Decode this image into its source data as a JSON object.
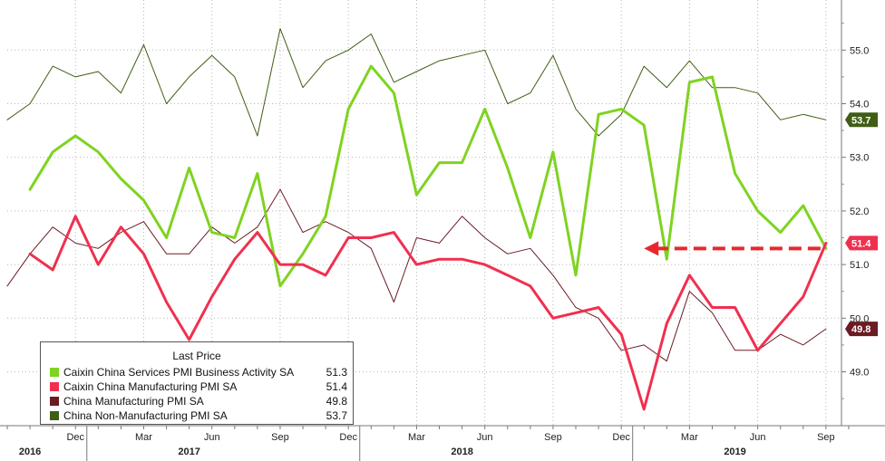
{
  "chart_data": {
    "type": "line",
    "title": "",
    "xlabel": "",
    "ylabel": "",
    "ylim": [
      48.0,
      55.9
    ],
    "yticks": [
      49.0,
      50.0,
      51.0,
      52.0,
      53.0,
      54.0,
      55.0
    ],
    "ytick_labels": [
      "49.0",
      "50.0",
      "51.0",
      "52.0",
      "53.0",
      "54.0",
      "55.0"
    ],
    "x_range": [
      "2016-09",
      "2019-10"
    ],
    "month_ticks": [
      {
        "date": "2016-12",
        "label": "Dec"
      },
      {
        "date": "2017-03",
        "label": "Mar"
      },
      {
        "date": "2017-06",
        "label": "Jun"
      },
      {
        "date": "2017-09",
        "label": "Sep"
      },
      {
        "date": "2017-12",
        "label": "Dec"
      },
      {
        "date": "2018-03",
        "label": "Mar"
      },
      {
        "date": "2018-06",
        "label": "Jun"
      },
      {
        "date": "2018-09",
        "label": "Sep"
      },
      {
        "date": "2018-12",
        "label": "Dec"
      },
      {
        "date": "2019-03",
        "label": "Mar"
      },
      {
        "date": "2019-06",
        "label": "Jun"
      },
      {
        "date": "2019-09",
        "label": "Sep"
      }
    ],
    "year_labels": [
      {
        "date": "2016-10",
        "label": "2016"
      },
      {
        "date": "2017-05",
        "label": "2017"
      },
      {
        "date": "2018-05",
        "label": "2018"
      },
      {
        "date": "2019-05",
        "label": "2019"
      }
    ],
    "legend": {
      "title": "Last Price",
      "placement": "bottom-left",
      "entries": [
        {
          "name": "Caixin China Services PMI Business Activity SA",
          "value": "51.3",
          "color": "#7fd321"
        },
        {
          "name": "Caixin China Manufacturing PMI SA",
          "value": "51.4",
          "color": "#f0304f"
        },
        {
          "name": "China Manufacturing PMI SA",
          "value": "49.8",
          "color": "#6b1b22"
        },
        {
          "name": "China Non-Manufacturing PMI SA",
          "value": "53.7",
          "color": "#3f5e14"
        }
      ]
    },
    "badges": [
      {
        "value": "53.7",
        "label": "53.7",
        "bg": "#3f5e14",
        "fg": "#ffffff"
      },
      {
        "value": "51.4",
        "label": "51.4",
        "bg": "#f0304f",
        "fg": "#ffffff"
      },
      {
        "value": "49.8",
        "label": "49.8",
        "bg": "#6b1b22",
        "fg": "#ffffff"
      }
    ],
    "annotation_arrow": {
      "from": "2019-09",
      "to": "2019-01",
      "y": 51.3,
      "color": "#e8282e",
      "style": "dashed"
    },
    "series": [
      {
        "key": "caixin_services",
        "color": "#7fd321",
        "width": 3,
        "points": [
          [
            "2016-10",
            52.4
          ],
          [
            "2016-11",
            53.1
          ],
          [
            "2016-12",
            53.4
          ],
          [
            "2017-01",
            53.1
          ],
          [
            "2017-02",
            52.6
          ],
          [
            "2017-03",
            52.2
          ],
          [
            "2017-04",
            51.5
          ],
          [
            "2017-05",
            52.8
          ],
          [
            "2017-06",
            51.6
          ],
          [
            "2017-07",
            51.5
          ],
          [
            "2017-08",
            52.7
          ],
          [
            "2017-09",
            50.6
          ],
          [
            "2017-10",
            51.2
          ],
          [
            "2017-11",
            51.9
          ],
          [
            "2017-12",
            53.9
          ],
          [
            "2018-01",
            54.7
          ],
          [
            "2018-02",
            54.2
          ],
          [
            "2018-03",
            52.3
          ],
          [
            "2018-04",
            52.9
          ],
          [
            "2018-05",
            52.9
          ],
          [
            "2018-06",
            53.9
          ],
          [
            "2018-07",
            52.8
          ],
          [
            "2018-08",
            51.5
          ],
          [
            "2018-09",
            53.1
          ],
          [
            "2018-10",
            50.8
          ],
          [
            "2018-11",
            53.8
          ],
          [
            "2018-12",
            53.9
          ],
          [
            "2019-01",
            53.6
          ],
          [
            "2019-02",
            51.1
          ],
          [
            "2019-03",
            54.4
          ],
          [
            "2019-04",
            54.5
          ],
          [
            "2019-05",
            52.7
          ],
          [
            "2019-06",
            52.0
          ],
          [
            "2019-07",
            51.6
          ],
          [
            "2019-08",
            52.1
          ],
          [
            "2019-09",
            51.3
          ]
        ]
      },
      {
        "key": "caixin_manufacturing",
        "color": "#f0304f",
        "width": 3,
        "points": [
          [
            "2016-10",
            51.2
          ],
          [
            "2016-11",
            50.9
          ],
          [
            "2016-12",
            51.9
          ],
          [
            "2017-01",
            51.0
          ],
          [
            "2017-02",
            51.7
          ],
          [
            "2017-03",
            51.2
          ],
          [
            "2017-04",
            50.3
          ],
          [
            "2017-05",
            49.6
          ],
          [
            "2017-06",
            50.4
          ],
          [
            "2017-07",
            51.1
          ],
          [
            "2017-08",
            51.6
          ],
          [
            "2017-09",
            51.0
          ],
          [
            "2017-10",
            51.0
          ],
          [
            "2017-11",
            50.8
          ],
          [
            "2017-12",
            51.5
          ],
          [
            "2018-01",
            51.5
          ],
          [
            "2018-02",
            51.6
          ],
          [
            "2018-03",
            51.0
          ],
          [
            "2018-04",
            51.1
          ],
          [
            "2018-05",
            51.1
          ],
          [
            "2018-06",
            51.0
          ],
          [
            "2018-07",
            50.8
          ],
          [
            "2018-08",
            50.6
          ],
          [
            "2018-09",
            50.0
          ],
          [
            "2018-10",
            50.1
          ],
          [
            "2018-11",
            50.2
          ],
          [
            "2018-12",
            49.7
          ],
          [
            "2019-01",
            48.3
          ],
          [
            "2019-02",
            49.9
          ],
          [
            "2019-03",
            50.8
          ],
          [
            "2019-04",
            50.2
          ],
          [
            "2019-05",
            50.2
          ],
          [
            "2019-06",
            49.4
          ],
          [
            "2019-07",
            49.9
          ],
          [
            "2019-08",
            50.4
          ],
          [
            "2019-09",
            51.4
          ]
        ]
      },
      {
        "key": "china_manufacturing",
        "color": "#6b1b22",
        "width": 1,
        "points": [
          [
            "2016-09",
            50.6
          ],
          [
            "2016-10",
            51.2
          ],
          [
            "2016-11",
            51.7
          ],
          [
            "2016-12",
            51.4
          ],
          [
            "2017-01",
            51.3
          ],
          [
            "2017-02",
            51.6
          ],
          [
            "2017-03",
            51.8
          ],
          [
            "2017-04",
            51.2
          ],
          [
            "2017-05",
            51.2
          ],
          [
            "2017-06",
            51.7
          ],
          [
            "2017-07",
            51.4
          ],
          [
            "2017-08",
            51.7
          ],
          [
            "2017-09",
            52.4
          ],
          [
            "2017-10",
            51.6
          ],
          [
            "2017-11",
            51.8
          ],
          [
            "2017-12",
            51.6
          ],
          [
            "2018-01",
            51.3
          ],
          [
            "2018-02",
            50.3
          ],
          [
            "2018-03",
            51.5
          ],
          [
            "2018-04",
            51.4
          ],
          [
            "2018-05",
            51.9
          ],
          [
            "2018-06",
            51.5
          ],
          [
            "2018-07",
            51.2
          ],
          [
            "2018-08",
            51.3
          ],
          [
            "2018-09",
            50.8
          ],
          [
            "2018-10",
            50.2
          ],
          [
            "2018-11",
            50.0
          ],
          [
            "2018-12",
            49.4
          ],
          [
            "2019-01",
            49.5
          ],
          [
            "2019-02",
            49.2
          ],
          [
            "2019-03",
            50.5
          ],
          [
            "2019-04",
            50.1
          ],
          [
            "2019-05",
            49.4
          ],
          [
            "2019-06",
            49.4
          ],
          [
            "2019-07",
            49.7
          ],
          [
            "2019-08",
            49.5
          ],
          [
            "2019-09",
            49.8
          ]
        ]
      },
      {
        "key": "china_non_manufacturing",
        "color": "#3f5e14",
        "width": 1,
        "points": [
          [
            "2016-09",
            53.7
          ],
          [
            "2016-10",
            54.0
          ],
          [
            "2016-11",
            54.7
          ],
          [
            "2016-12",
            54.5
          ],
          [
            "2017-01",
            54.6
          ],
          [
            "2017-02",
            54.2
          ],
          [
            "2017-03",
            55.1
          ],
          [
            "2017-04",
            54.0
          ],
          [
            "2017-05",
            54.5
          ],
          [
            "2017-06",
            54.9
          ],
          [
            "2017-07",
            54.5
          ],
          [
            "2017-08",
            53.4
          ],
          [
            "2017-09",
            55.4
          ],
          [
            "2017-10",
            54.3
          ],
          [
            "2017-11",
            54.8
          ],
          [
            "2017-12",
            55.0
          ],
          [
            "2018-01",
            55.3
          ],
          [
            "2018-02",
            54.4
          ],
          [
            "2018-03",
            54.6
          ],
          [
            "2018-04",
            54.8
          ],
          [
            "2018-05",
            54.9
          ],
          [
            "2018-06",
            55.0
          ],
          [
            "2018-07",
            54.0
          ],
          [
            "2018-08",
            54.2
          ],
          [
            "2018-09",
            54.9
          ],
          [
            "2018-10",
            53.9
          ],
          [
            "2018-11",
            53.4
          ],
          [
            "2018-12",
            53.8
          ],
          [
            "2019-01",
            54.7
          ],
          [
            "2019-02",
            54.3
          ],
          [
            "2019-03",
            54.8
          ],
          [
            "2019-04",
            54.3
          ],
          [
            "2019-05",
            54.3
          ],
          [
            "2019-06",
            54.2
          ],
          [
            "2019-07",
            53.7
          ],
          [
            "2019-08",
            53.8
          ],
          [
            "2019-09",
            53.7
          ]
        ]
      }
    ]
  }
}
